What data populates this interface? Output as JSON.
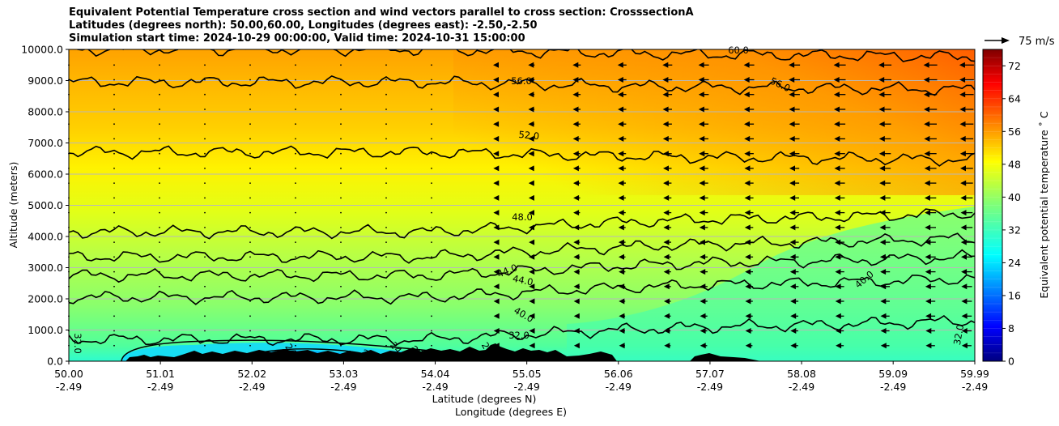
{
  "chart_data": {
    "type": "heatmap",
    "title_lines": [
      "Equivalent Potential Temperature cross section and wind vectors parallel to cross section: CrosssectionA",
      "Latitudes (degrees north): 50.00,60.00, Longitudes (degrees east): -2.50,-2.50",
      "Simulation start time: 2024-10-29 00:00:00, Valid time: 2024-10-31 15:00:00"
    ],
    "ylabel": "Altitude (meters)",
    "xlabel_lines": [
      "Latitude (degrees N)",
      "Longitude (degrees E)"
    ],
    "xlim": [
      50.0,
      59.99
    ],
    "ylim": [
      0,
      10000
    ],
    "y_ticks": [
      "0.0",
      "1000.0",
      "2000.0",
      "3000.0",
      "4000.0",
      "5000.0",
      "6000.0",
      "7000.0",
      "8000.0",
      "9000.0",
      "10000.0"
    ],
    "x_ticks": [
      {
        "lat": "50.00",
        "lon": "-2.49"
      },
      {
        "lat": "51.01",
        "lon": "-2.49"
      },
      {
        "lat": "52.02",
        "lon": "-2.49"
      },
      {
        "lat": "53.03",
        "lon": "-2.49"
      },
      {
        "lat": "54.04",
        "lon": "-2.49"
      },
      {
        "lat": "55.05",
        "lon": "-2.49"
      },
      {
        "lat": "56.06",
        "lon": "-2.49"
      },
      {
        "lat": "57.07",
        "lon": "-2.49"
      },
      {
        "lat": "58.08",
        "lon": "-2.49"
      },
      {
        "lat": "59.09",
        "lon": "-2.49"
      },
      {
        "lat": "59.99",
        "lon": "-2.49"
      }
    ],
    "grid": "horizontal",
    "colorbar": {
      "label": "Equivalent potential temperature $^\\circ$C",
      "label_display": "Equivalent potential temperature ˚ C",
      "range": [
        0,
        76
      ],
      "ticks": [
        "0",
        "8",
        "16",
        "24",
        "32",
        "40",
        "48",
        "56",
        "64",
        "72"
      ],
      "colormap": "jet"
    },
    "quiver_key": {
      "label": "75 m/s",
      "value": 75
    },
    "contour_levels": [
      {
        "value": 32,
        "label": "32.0",
        "altitude_left": 700
      },
      {
        "value": 36,
        "label": "",
        "altitude_left": 2050
      },
      {
        "value": 40,
        "label": "40.0",
        "altitude_left": 2750
      },
      {
        "value": 44,
        "label": "44.0",
        "altitude_left": 3350
      },
      {
        "value": 48,
        "label": "48.0",
        "altitude_left": 4150
      },
      {
        "value": 52,
        "label": "52.0",
        "altitude_left": 6700
      },
      {
        "value": 56,
        "label": "56.0",
        "altitude_left": 8950
      },
      {
        "value": 60,
        "label": "60.0",
        "altitude_left": 10000
      }
    ],
    "contour_label_texts": [
      "60.0",
      "56.0",
      "56.0",
      "52.0",
      "48.0",
      "44.0",
      "44.0",
      "40.0",
      "40.0",
      "32.0",
      "32.0",
      "32.0",
      "28",
      "24",
      "20",
      "24",
      "28"
    ],
    "wind_columns": [
      {
        "lat": 50.0,
        "u": 0
      },
      {
        "lat": 50.5,
        "u": 0
      },
      {
        "lat": 51.0,
        "u": 0
      },
      {
        "lat": 51.5,
        "u": 0
      },
      {
        "lat": 52.0,
        "u": 0
      },
      {
        "lat": 52.5,
        "u": 0
      },
      {
        "lat": 53.0,
        "u": 0
      },
      {
        "lat": 53.5,
        "u": 0
      },
      {
        "lat": 54.0,
        "u": 0
      },
      {
        "lat": 54.7,
        "u": -5
      },
      {
        "lat": 55.1,
        "u": -8
      },
      {
        "lat": 55.6,
        "u": -10
      },
      {
        "lat": 56.1,
        "u": -11
      },
      {
        "lat": 56.6,
        "u": -12
      },
      {
        "lat": 57.0,
        "u": -13
      },
      {
        "lat": 57.5,
        "u": -13
      },
      {
        "lat": 58.0,
        "u": -14
      },
      {
        "lat": 58.5,
        "u": -15
      },
      {
        "lat": 59.0,
        "u": -16
      },
      {
        "lat": 59.5,
        "u": -17
      },
      {
        "lat": 59.9,
        "u": -18
      }
    ]
  }
}
